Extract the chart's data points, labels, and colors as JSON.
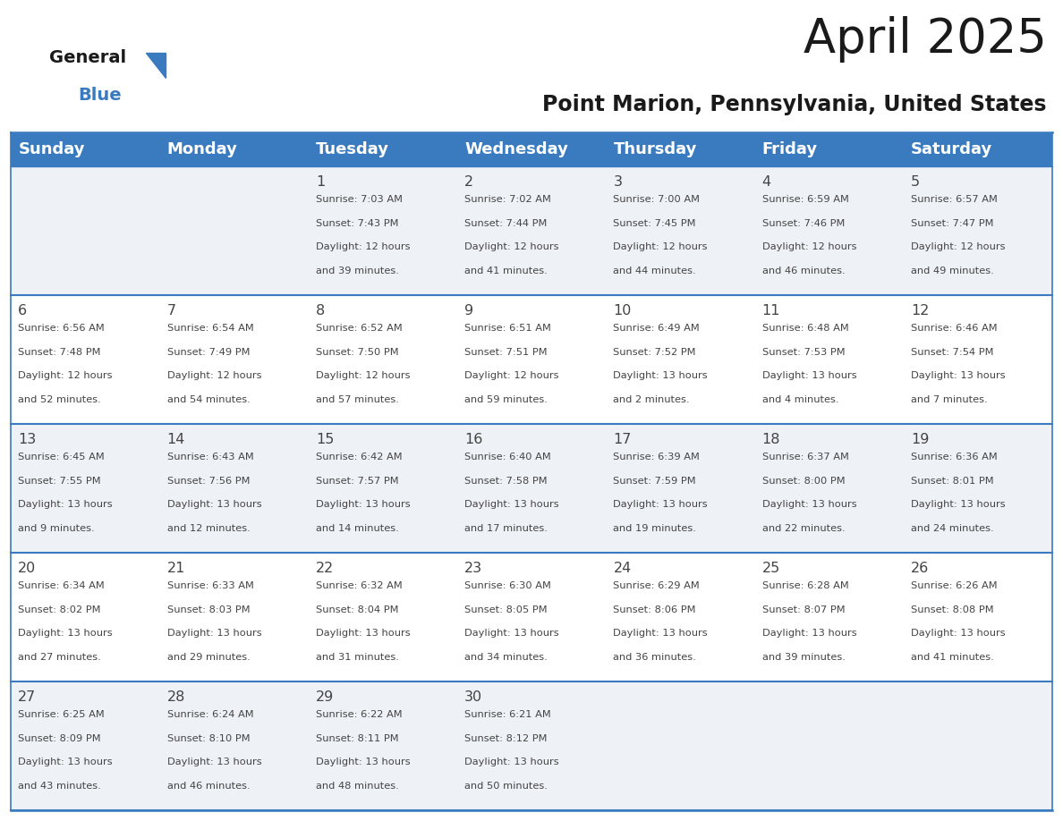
{
  "title": "April 2025",
  "subtitle": "Point Marion, Pennsylvania, United States",
  "header_color": "#3a7abf",
  "header_text_color": "#ffffff",
  "cell_bg_row0": "#eef2f7",
  "cell_bg_row1": "#ffffff",
  "cell_bg_row2": "#eef2f7",
  "cell_bg_row3": "#ffffff",
  "cell_bg_row4": "#eef2f7",
  "day_headers": [
    "Sunday",
    "Monday",
    "Tuesday",
    "Wednesday",
    "Thursday",
    "Friday",
    "Saturday"
  ],
  "title_fontsize": 38,
  "subtitle_fontsize": 17,
  "header_fontsize": 13,
  "day_num_fontsize": 11.5,
  "cell_text_fontsize": 8.2,
  "grid_line_color": "#3a7abf",
  "sep_line_color": "#3a7abf",
  "text_color": "#444444",
  "calendar": [
    [
      {
        "day": null,
        "sunrise": null,
        "sunset": null,
        "daylight": null
      },
      {
        "day": null,
        "sunrise": null,
        "sunset": null,
        "daylight": null
      },
      {
        "day": 1,
        "sunrise": "7:03 AM",
        "sunset": "7:43 PM",
        "daylight": "12 hours\nand 39 minutes."
      },
      {
        "day": 2,
        "sunrise": "7:02 AM",
        "sunset": "7:44 PM",
        "daylight": "12 hours\nand 41 minutes."
      },
      {
        "day": 3,
        "sunrise": "7:00 AM",
        "sunset": "7:45 PM",
        "daylight": "12 hours\nand 44 minutes."
      },
      {
        "day": 4,
        "sunrise": "6:59 AM",
        "sunset": "7:46 PM",
        "daylight": "12 hours\nand 46 minutes."
      },
      {
        "day": 5,
        "sunrise": "6:57 AM",
        "sunset": "7:47 PM",
        "daylight": "12 hours\nand 49 minutes."
      }
    ],
    [
      {
        "day": 6,
        "sunrise": "6:56 AM",
        "sunset": "7:48 PM",
        "daylight": "12 hours\nand 52 minutes."
      },
      {
        "day": 7,
        "sunrise": "6:54 AM",
        "sunset": "7:49 PM",
        "daylight": "12 hours\nand 54 minutes."
      },
      {
        "day": 8,
        "sunrise": "6:52 AM",
        "sunset": "7:50 PM",
        "daylight": "12 hours\nand 57 minutes."
      },
      {
        "day": 9,
        "sunrise": "6:51 AM",
        "sunset": "7:51 PM",
        "daylight": "12 hours\nand 59 minutes."
      },
      {
        "day": 10,
        "sunrise": "6:49 AM",
        "sunset": "7:52 PM",
        "daylight": "13 hours\nand 2 minutes."
      },
      {
        "day": 11,
        "sunrise": "6:48 AM",
        "sunset": "7:53 PM",
        "daylight": "13 hours\nand 4 minutes."
      },
      {
        "day": 12,
        "sunrise": "6:46 AM",
        "sunset": "7:54 PM",
        "daylight": "13 hours\nand 7 minutes."
      }
    ],
    [
      {
        "day": 13,
        "sunrise": "6:45 AM",
        "sunset": "7:55 PM",
        "daylight": "13 hours\nand 9 minutes."
      },
      {
        "day": 14,
        "sunrise": "6:43 AM",
        "sunset": "7:56 PM",
        "daylight": "13 hours\nand 12 minutes."
      },
      {
        "day": 15,
        "sunrise": "6:42 AM",
        "sunset": "7:57 PM",
        "daylight": "13 hours\nand 14 minutes."
      },
      {
        "day": 16,
        "sunrise": "6:40 AM",
        "sunset": "7:58 PM",
        "daylight": "13 hours\nand 17 minutes."
      },
      {
        "day": 17,
        "sunrise": "6:39 AM",
        "sunset": "7:59 PM",
        "daylight": "13 hours\nand 19 minutes."
      },
      {
        "day": 18,
        "sunrise": "6:37 AM",
        "sunset": "8:00 PM",
        "daylight": "13 hours\nand 22 minutes."
      },
      {
        "day": 19,
        "sunrise": "6:36 AM",
        "sunset": "8:01 PM",
        "daylight": "13 hours\nand 24 minutes."
      }
    ],
    [
      {
        "day": 20,
        "sunrise": "6:34 AM",
        "sunset": "8:02 PM",
        "daylight": "13 hours\nand 27 minutes."
      },
      {
        "day": 21,
        "sunrise": "6:33 AM",
        "sunset": "8:03 PM",
        "daylight": "13 hours\nand 29 minutes."
      },
      {
        "day": 22,
        "sunrise": "6:32 AM",
        "sunset": "8:04 PM",
        "daylight": "13 hours\nand 31 minutes."
      },
      {
        "day": 23,
        "sunrise": "6:30 AM",
        "sunset": "8:05 PM",
        "daylight": "13 hours\nand 34 minutes."
      },
      {
        "day": 24,
        "sunrise": "6:29 AM",
        "sunset": "8:06 PM",
        "daylight": "13 hours\nand 36 minutes."
      },
      {
        "day": 25,
        "sunrise": "6:28 AM",
        "sunset": "8:07 PM",
        "daylight": "13 hours\nand 39 minutes."
      },
      {
        "day": 26,
        "sunrise": "6:26 AM",
        "sunset": "8:08 PM",
        "daylight": "13 hours\nand 41 minutes."
      }
    ],
    [
      {
        "day": 27,
        "sunrise": "6:25 AM",
        "sunset": "8:09 PM",
        "daylight": "13 hours\nand 43 minutes."
      },
      {
        "day": 28,
        "sunrise": "6:24 AM",
        "sunset": "8:10 PM",
        "daylight": "13 hours\nand 46 minutes."
      },
      {
        "day": 29,
        "sunrise": "6:22 AM",
        "sunset": "8:11 PM",
        "daylight": "13 hours\nand 48 minutes."
      },
      {
        "day": 30,
        "sunrise": "6:21 AM",
        "sunset": "8:12 PM",
        "daylight": "13 hours\nand 50 minutes."
      },
      {
        "day": null,
        "sunrise": null,
        "sunset": null,
        "daylight": null
      },
      {
        "day": null,
        "sunrise": null,
        "sunset": null,
        "daylight": null
      },
      {
        "day": null,
        "sunrise": null,
        "sunset": null,
        "daylight": null
      }
    ]
  ]
}
